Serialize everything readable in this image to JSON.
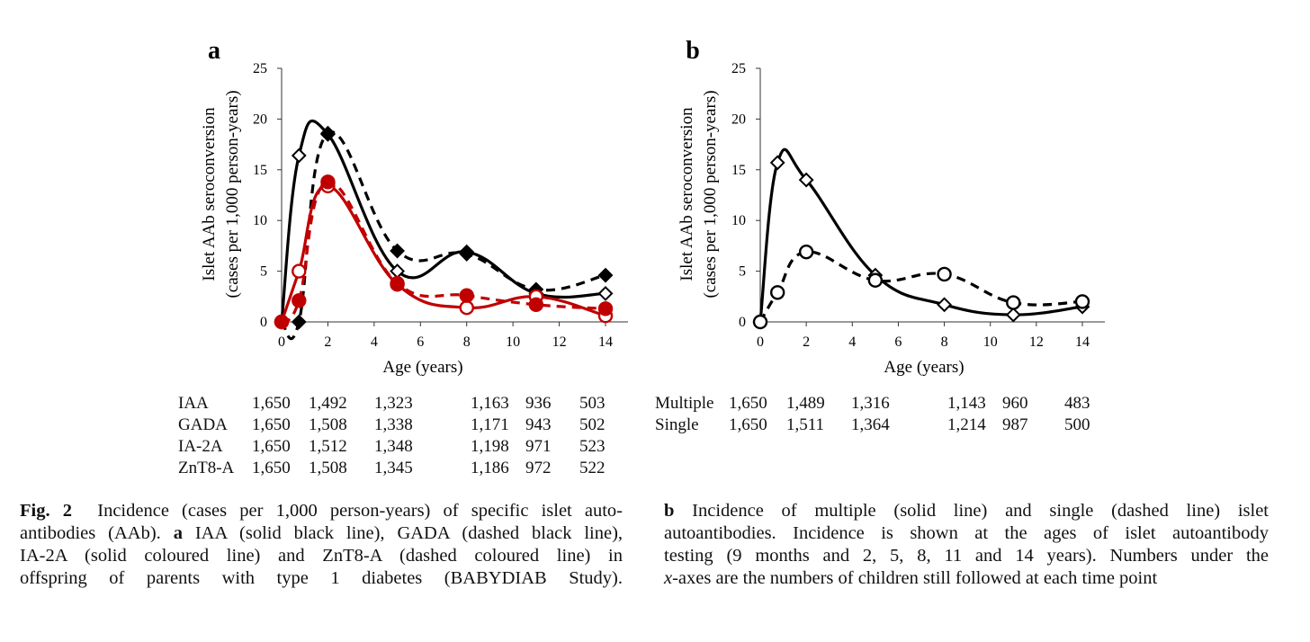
{
  "panels": [
    {
      "id": "a",
      "letter": "a",
      "ylabel_line1": "Islet AAb seroconversion",
      "ylabel_line2": "(cases per 1,000 person-years)",
      "xlabel": "Age (years)",
      "table": [
        {
          "label": "IAA",
          "values": [
            "1,650",
            "1,492",
            "1,323",
            "1,163",
            "936",
            "503"
          ]
        },
        {
          "label": "GADA",
          "values": [
            "1,650",
            "1,508",
            "1,338",
            "1,171",
            "943",
            "502"
          ]
        },
        {
          "label": "IA-2A",
          "values": [
            "1,650",
            "1,512",
            "1,348",
            "1,198",
            "971",
            "523"
          ]
        },
        {
          "label": "ZnT8-A",
          "values": [
            "1,650",
            "1,508",
            "1,345",
            "1,186",
            "972",
            "522"
          ]
        }
      ]
    },
    {
      "id": "b",
      "letter": "b",
      "ylabel_line1": "Islet AAb seroconversion",
      "ylabel_line2": "(cases per 1,000 person-years)",
      "xlabel": "Age (years)",
      "table": [
        {
          "label": "Multiple",
          "values": [
            "1,650",
            "1,489",
            "1,316",
            "1,143",
            "960",
            "483"
          ]
        },
        {
          "label": "Single",
          "values": [
            "1,650",
            "1,511",
            "1,364",
            "1,214",
            "987",
            "500"
          ]
        }
      ]
    }
  ],
  "chart_data": [
    {
      "type": "line",
      "panel": "a",
      "xlabel": "Age (years)",
      "ylabel": "Islet AAb seroconversion (cases per 1,000 person-years)",
      "xlim": [
        0,
        14
      ],
      "ylim": [
        0,
        25
      ],
      "xticks": [
        0,
        2,
        4,
        6,
        8,
        10,
        12,
        14
      ],
      "yticks": [
        0,
        5,
        10,
        15,
        20,
        25
      ],
      "x": [
        0,
        0.75,
        2,
        5,
        8,
        11,
        14
      ],
      "series": [
        {
          "name": "IAA",
          "values": [
            0,
            16.4,
            18.5,
            5.0,
            6.9,
            2.8,
            2.8
          ],
          "color": "#000000",
          "dash": false,
          "marker": "diamond-open"
        },
        {
          "name": "GADA",
          "values": [
            0,
            0,
            18.6,
            7.0,
            6.7,
            3.2,
            4.6
          ],
          "color": "#000000",
          "dash": true,
          "marker": "diamond-filled"
        },
        {
          "name": "IA-2A",
          "values": [
            0,
            5.0,
            13.4,
            3.7,
            1.4,
            2.5,
            0.6
          ],
          "color": "#c00000",
          "dash": false,
          "marker": "circle-open"
        },
        {
          "name": "ZnT8-A",
          "values": [
            0,
            2.1,
            13.8,
            3.8,
            2.6,
            1.7,
            1.3
          ],
          "color": "#c00000",
          "dash": true,
          "marker": "circle-filled"
        }
      ]
    },
    {
      "type": "line",
      "panel": "b",
      "xlabel": "Age (years)",
      "ylabel": "Islet AAb seroconversion (cases per 1,000 person-years)",
      "xlim": [
        0,
        14
      ],
      "ylim": [
        0,
        25
      ],
      "xticks": [
        0,
        2,
        4,
        6,
        8,
        10,
        12,
        14
      ],
      "yticks": [
        0,
        5,
        10,
        15,
        20,
        25
      ],
      "x": [
        0,
        0.75,
        2,
        5,
        8,
        11,
        14
      ],
      "series": [
        {
          "name": "Multiple",
          "values": [
            0,
            15.7,
            14.0,
            4.6,
            1.7,
            0.7,
            1.5
          ],
          "color": "#000000",
          "dash": false,
          "marker": "diamond-open"
        },
        {
          "name": "Single",
          "values": [
            0,
            2.9,
            6.9,
            4.1,
            4.7,
            1.9,
            2.0
          ],
          "color": "#000000",
          "dash": true,
          "marker": "circle-open"
        }
      ]
    }
  ],
  "caption": {
    "fig_label": "Fig. 2",
    "left_line1": "Incidence (cases per 1,000 person-years) of specific islet auto-",
    "left_line2_a": "antibodies (AAb).",
    "left_line2_bold": "a",
    "left_line2_b": "IAA (solid black line), GADA (dashed black line),",
    "left_line3": "IA-2A (solid coloured line) and ZnT8-A (dashed coloured line) in",
    "left_line4": "offspring of parents with type 1 diabetes (BABYDIAB Study).",
    "right_bold": "b",
    "right_line1": "Incidence of multiple (solid line) and single (dashed line) islet",
    "right_line2": "autoantibodies. Incidence is shown at the ages of islet autoantibody",
    "right_line3": "testing (9 months and 2, 5, 8, 11 and 14 years). Numbers under the",
    "right_line4_italic": "x",
    "right_line4": "-axes are the numbers of children still followed at each time point"
  }
}
